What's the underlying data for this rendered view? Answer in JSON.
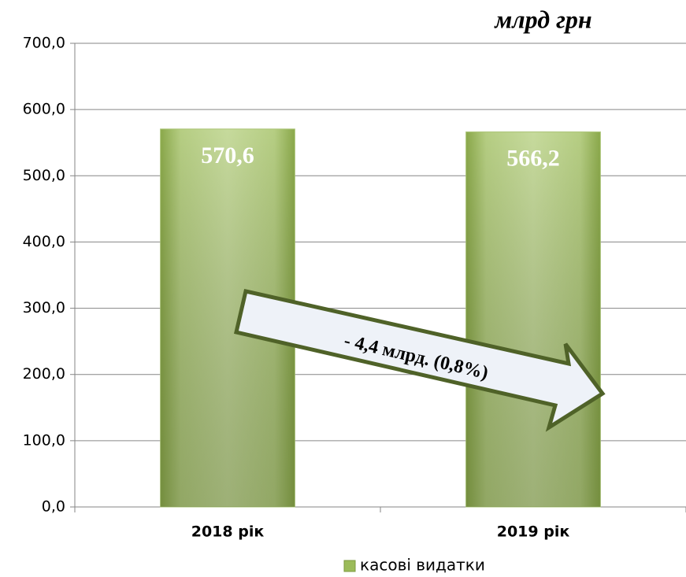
{
  "chart_data": {
    "type": "bar",
    "subtitle": "млрд грн",
    "annotation": "- 4,4 млрд. (0,8%)",
    "categories": [
      "2018 рік",
      "2019 рік"
    ],
    "series": [
      {
        "name": "касові видатки",
        "color": "#9bbb59",
        "values": [
          570.6,
          566.2
        ],
        "value_labels": [
          "570,6",
          "566,2"
        ]
      }
    ],
    "ylim": [
      0,
      700
    ],
    "yticks": [
      {
        "value": 0,
        "label": "0,0"
      },
      {
        "value": 100,
        "label": "100,0"
      },
      {
        "value": 200,
        "label": "200,0"
      },
      {
        "value": 300,
        "label": "300,0"
      },
      {
        "value": 400,
        "label": "400,0"
      },
      {
        "value": 500,
        "label": "500,0"
      },
      {
        "value": 600,
        "label": "600,0"
      },
      {
        "value": 700,
        "label": "700,0"
      }
    ],
    "grid": true,
    "legend": "bottom"
  }
}
